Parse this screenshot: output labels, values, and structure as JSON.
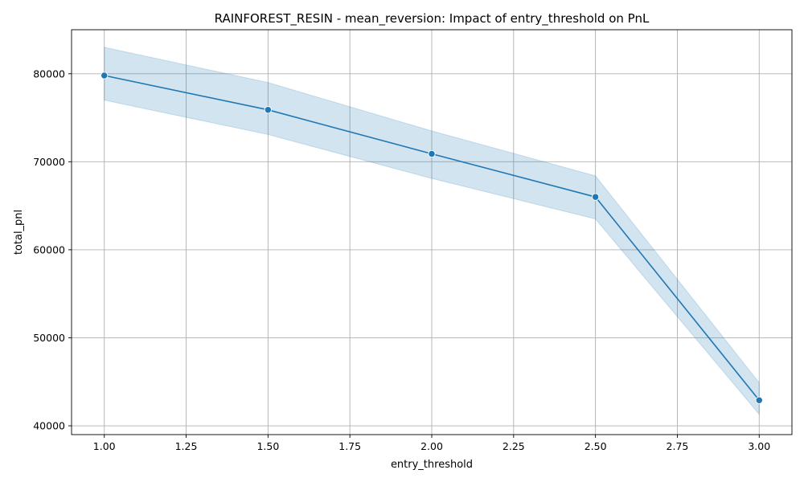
{
  "chart_data": {
    "type": "line",
    "title": "RAINFOREST_RESIN - mean_reversion: Impact of entry_threshold on PnL",
    "xlabel": "entry_threshold",
    "ylabel": "total_pnl",
    "xlim": [
      0.9,
      3.1
    ],
    "ylim": [
      39000,
      85000
    ],
    "xticks": [
      1.0,
      1.25,
      1.5,
      1.75,
      2.0,
      2.25,
      2.5,
      2.75,
      3.0
    ],
    "xtick_labels": [
      "1.00",
      "1.25",
      "1.50",
      "1.75",
      "2.00",
      "2.25",
      "2.50",
      "2.75",
      "3.00"
    ],
    "yticks": [
      40000,
      50000,
      60000,
      70000,
      80000
    ],
    "ytick_labels": [
      "40000",
      "50000",
      "60000",
      "70000",
      "80000"
    ],
    "grid": true,
    "series": [
      {
        "x": [
          1.0,
          1.5,
          2.0,
          2.5,
          3.0
        ],
        "y": [
          79800,
          75900,
          70900,
          66000,
          42900
        ],
        "ci_lower": [
          77000,
          73100,
          68100,
          63500,
          41300
        ],
        "ci_upper": [
          83000,
          79000,
          73500,
          68400,
          44900
        ],
        "color": "#1f77b4",
        "band_color": "#1f77b4",
        "marker": "circle"
      }
    ]
  }
}
